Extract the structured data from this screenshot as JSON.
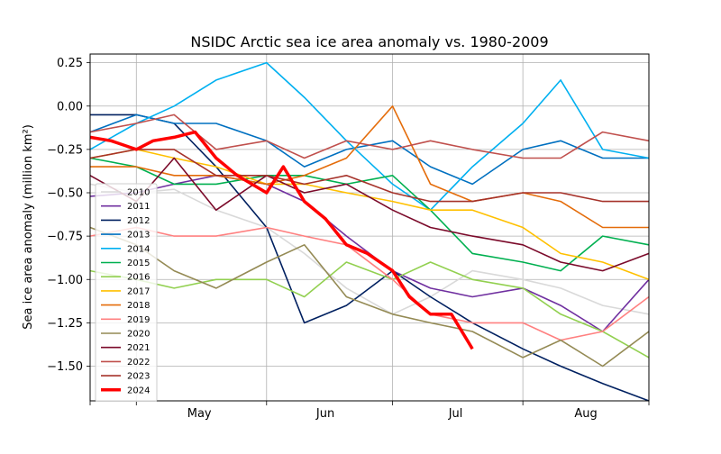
{
  "chart_data": {
    "type": "line",
    "title": "NSIDC Arctic sea ice area anomaly vs. 1980-2009",
    "ylabel": "Sea ice area anomaly (million km²)",
    "xlabel": "",
    "xlim": [
      "Apr 20",
      "Aug 31"
    ],
    "ylim": [
      -1.7,
      0.3
    ],
    "x_ticks": [
      "May",
      "Jun",
      "Jul",
      "Aug"
    ],
    "y_ticks": [
      "0.25",
      "0.00",
      "−0.25",
      "−0.50",
      "−0.75",
      "−1.00",
      "−1.25",
      "−1.50"
    ],
    "grid": true,
    "legend_position": "lower-left",
    "series": [
      {
        "name": "2010",
        "color": "#d9d9d9",
        "x": [
          "Apr 20",
          "May 1",
          "May 10",
          "May 20",
          "Jun 1",
          "Jun 10",
          "Jun 20",
          "Jul 1",
          "Jul 10",
          "Jul 20",
          "Aug 1",
          "Aug 10",
          "Aug 20",
          "Aug 31"
        ],
        "values": [
          -0.45,
          -0.5,
          -0.48,
          -0.6,
          -0.7,
          -0.85,
          -1.05,
          -1.2,
          -1.1,
          -0.95,
          -1.0,
          -1.05,
          -1.15,
          -1.2
        ]
      },
      {
        "name": "2011",
        "color": "#7030a0",
        "x": [
          "Apr 20",
          "May 1",
          "May 10",
          "May 20",
          "Jun 1",
          "Jun 10",
          "Jun 20",
          "Jul 1",
          "Jul 10",
          "Jul 20",
          "Aug 1",
          "Aug 10",
          "Aug 20",
          "Aug 31"
        ],
        "values": [
          -0.52,
          -0.5,
          -0.45,
          -0.4,
          -0.45,
          -0.55,
          -0.75,
          -0.95,
          -1.05,
          -1.1,
          -1.05,
          -1.15,
          -1.3,
          -1.0
        ]
      },
      {
        "name": "2012",
        "color": "#002060",
        "x": [
          "Apr 20",
          "May 1",
          "May 10",
          "May 20",
          "Jun 1",
          "Jun 10",
          "Jun 20",
          "Jul 1",
          "Jul 10",
          "Jul 20",
          "Aug 1",
          "Aug 10",
          "Aug 20",
          "Aug 31"
        ],
        "values": [
          -0.05,
          -0.05,
          -0.1,
          -0.35,
          -0.7,
          -1.25,
          -1.15,
          -0.95,
          -1.1,
          -1.25,
          -1.4,
          -1.5,
          -1.6,
          -1.7
        ]
      },
      {
        "name": "2013",
        "color": "#0070c0",
        "x": [
          "Apr 20",
          "May 1",
          "May 10",
          "May 20",
          "Jun 1",
          "Jun 10",
          "Jun 20",
          "Jul 1",
          "Jul 10",
          "Jul 20",
          "Aug 1",
          "Aug 10",
          "Aug 20",
          "Aug 31"
        ],
        "values": [
          -0.15,
          -0.05,
          -0.1,
          -0.1,
          -0.2,
          -0.35,
          -0.25,
          -0.2,
          -0.35,
          -0.45,
          -0.25,
          -0.2,
          -0.3,
          -0.3
        ]
      },
      {
        "name": "2014",
        "color": "#00b0f0",
        "x": [
          "Apr 20",
          "May 1",
          "May 10",
          "May 20",
          "Jun 1",
          "Jun 10",
          "Jun 20",
          "Jul 1",
          "Jul 10",
          "Jul 20",
          "Aug 1",
          "Aug 10",
          "Aug 20",
          "Aug 31"
        ],
        "values": [
          -0.25,
          -0.1,
          0.0,
          0.15,
          0.25,
          0.05,
          -0.2,
          -0.45,
          -0.6,
          -0.35,
          -0.1,
          0.15,
          -0.25,
          -0.3
        ]
      },
      {
        "name": "2015",
        "color": "#00b050",
        "x": [
          "Apr 20",
          "May 1",
          "May 10",
          "May 20",
          "Jun 1",
          "Jun 10",
          "Jun 20",
          "Jul 1",
          "Jul 10",
          "Jul 20",
          "Aug 1",
          "Aug 10",
          "Aug 20",
          "Aug 31"
        ],
        "values": [
          -0.3,
          -0.35,
          -0.45,
          -0.45,
          -0.4,
          -0.4,
          -0.45,
          -0.4,
          -0.6,
          -0.85,
          -0.9,
          -0.95,
          -0.75,
          -0.8
        ]
      },
      {
        "name": "2016",
        "color": "#92d050",
        "x": [
          "Apr 20",
          "May 1",
          "May 10",
          "May 20",
          "Jun 1",
          "Jun 10",
          "Jun 20",
          "Jul 1",
          "Jul 10",
          "Jul 20",
          "Aug 1",
          "Aug 10",
          "Aug 20",
          "Aug 31"
        ],
        "values": [
          -0.95,
          -1.0,
          -1.05,
          -1.0,
          -1.0,
          -1.1,
          -0.9,
          -1.0,
          -0.9,
          -1.0,
          -1.05,
          -1.2,
          -1.3,
          -1.45
        ]
      },
      {
        "name": "2017",
        "color": "#ffc000",
        "x": [
          "Apr 20",
          "May 1",
          "May 10",
          "May 20",
          "Jun 1",
          "Jun 10",
          "Jun 20",
          "Jul 1",
          "Jul 10",
          "Jul 20",
          "Aug 1",
          "Aug 10",
          "Aug 20",
          "Aug 31"
        ],
        "values": [
          -0.3,
          -0.25,
          -0.3,
          -0.35,
          -0.45,
          -0.45,
          -0.5,
          -0.55,
          -0.6,
          -0.6,
          -0.7,
          -0.85,
          -0.9,
          -1.0
        ]
      },
      {
        "name": "2018",
        "color": "#e46c0a",
        "x": [
          "Apr 20",
          "May 1",
          "May 10",
          "May 20",
          "Jun 1",
          "Jun 10",
          "Jun 20",
          "Jul 1",
          "Jul 10",
          "Jul 20",
          "Aug 1",
          "Aug 10",
          "Aug 20",
          "Aug 31"
        ],
        "values": [
          -0.35,
          -0.35,
          -0.4,
          -0.4,
          -0.45,
          -0.4,
          -0.3,
          0.0,
          -0.45,
          -0.55,
          -0.5,
          -0.55,
          -0.7,
          -0.7
        ]
      },
      {
        "name": "2019",
        "color": "#ff8080",
        "x": [
          "Apr 20",
          "May 1",
          "May 10",
          "May 20",
          "Jun 1",
          "Jun 10",
          "Jun 20",
          "Jul 1",
          "Jul 10",
          "Jul 20",
          "Aug 1",
          "Aug 10",
          "Aug 20",
          "Aug 31"
        ],
        "values": [
          -0.75,
          -0.7,
          -0.75,
          -0.75,
          -0.7,
          -0.75,
          -0.8,
          -1.0,
          -1.2,
          -1.25,
          -1.25,
          -1.35,
          -1.3,
          -1.1
        ]
      },
      {
        "name": "2020",
        "color": "#948a54",
        "x": [
          "Apr 20",
          "May 1",
          "May 10",
          "May 20",
          "Jun 1",
          "Jun 10",
          "Jun 20",
          "Jul 1",
          "Jul 10",
          "Jul 20",
          "Aug 1",
          "Aug 10",
          "Aug 20",
          "Aug 31"
        ],
        "values": [
          -0.7,
          -0.8,
          -0.95,
          -1.05,
          -0.9,
          -0.8,
          -1.1,
          -1.2,
          -1.25,
          -1.3,
          -1.45,
          -1.35,
          -1.5,
          -1.3
        ]
      },
      {
        "name": "2021",
        "color": "#7b0a2a",
        "x": [
          "Apr 20",
          "May 1",
          "May 10",
          "May 20",
          "Jun 1",
          "Jun 10",
          "Jun 20",
          "Jul 1",
          "Jul 10",
          "Jul 20",
          "Aug 1",
          "Aug 10",
          "Aug 20",
          "Aug 31"
        ],
        "values": [
          -0.4,
          -0.55,
          -0.3,
          -0.6,
          -0.4,
          -0.5,
          -0.45,
          -0.6,
          -0.7,
          -0.75,
          -0.8,
          -0.9,
          -0.95,
          -0.85
        ]
      },
      {
        "name": "2022",
        "color": "#c0504d",
        "x": [
          "Apr 20",
          "May 1",
          "May 10",
          "May 20",
          "Jun 1",
          "Jun 10",
          "Jun 20",
          "Jul 1",
          "Jul 10",
          "Jul 20",
          "Aug 1",
          "Aug 10",
          "Aug 20",
          "Aug 31"
        ],
        "values": [
          -0.15,
          -0.1,
          -0.05,
          -0.25,
          -0.2,
          -0.3,
          -0.2,
          -0.25,
          -0.2,
          -0.25,
          -0.3,
          -0.3,
          -0.15,
          -0.2
        ]
      },
      {
        "name": "2023",
        "color": "#a6322a",
        "x": [
          "Apr 20",
          "May 1",
          "May 10",
          "May 20",
          "Jun 1",
          "Jun 10",
          "Jun 20",
          "Jul 1",
          "Jul 10",
          "Jul 20",
          "Aug 1",
          "Aug 10",
          "Aug 20",
          "Aug 31"
        ],
        "values": [
          -0.3,
          -0.25,
          -0.25,
          -0.4,
          -0.4,
          -0.45,
          -0.4,
          -0.5,
          -0.55,
          -0.55,
          -0.5,
          -0.5,
          -0.55,
          -0.55
        ]
      },
      {
        "name": "2024",
        "color": "#ff0000",
        "highlight": true,
        "x": [
          "Apr 20",
          "Apr 25",
          "May 1",
          "May 5",
          "May 10",
          "May 15",
          "May 20",
          "May 25",
          "Jun 1",
          "Jun 5",
          "Jun 10",
          "Jun 15",
          "Jun 20",
          "Jun 25",
          "Jul 1",
          "Jul 5",
          "Jul 10",
          "Jul 15",
          "Jul 20"
        ],
        "values": [
          -0.18,
          -0.2,
          -0.25,
          -0.2,
          -0.18,
          -0.15,
          -0.3,
          -0.4,
          -0.5,
          -0.35,
          -0.55,
          -0.65,
          -0.8,
          -0.85,
          -0.95,
          -1.1,
          -1.2,
          -1.2,
          -1.4
        ]
      }
    ]
  }
}
